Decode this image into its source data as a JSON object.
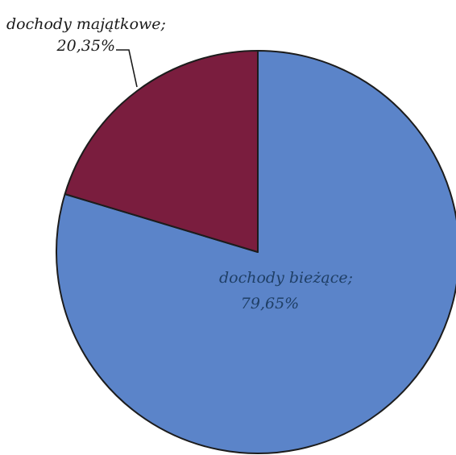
{
  "chart_data": {
    "type": "pie",
    "slices": [
      {
        "label": "dochody bieżące;",
        "value_label": "79,65%",
        "value": 79.65,
        "color": "#5b84c9"
      },
      {
        "label": "dochody majątkowe;",
        "value_label": "20,35%",
        "value": 20.35,
        "color": "#7a1d3e"
      }
    ],
    "outline_color": "#1c1c1c",
    "start_angle": "12 o'clock",
    "direction": "clockwise"
  }
}
